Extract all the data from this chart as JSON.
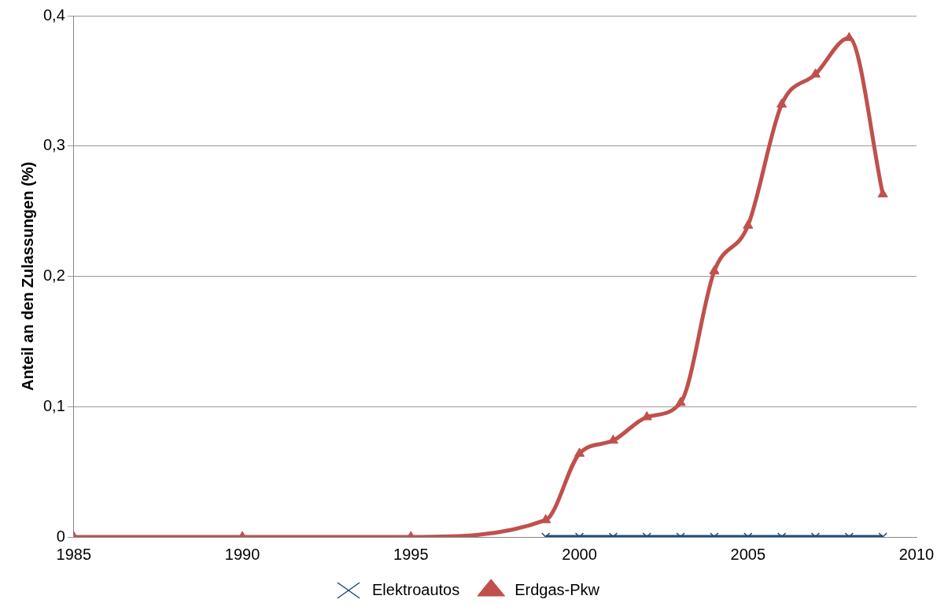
{
  "chart_data": {
    "type": "line",
    "ylabel": "Anteil an den Zulassungen (%)",
    "xlim": [
      1985,
      2010
    ],
    "xticks": [
      1985,
      1990,
      1995,
      2000,
      2005,
      2010
    ],
    "ylim": [
      0,
      0.4
    ],
    "yticks": [
      {
        "value": 0,
        "label": "0"
      },
      {
        "value": 0.1,
        "label": "0,1"
      },
      {
        "value": 0.2,
        "label": "0,2"
      },
      {
        "value": 0.3,
        "label": "0,3"
      },
      {
        "value": 0.4,
        "label": "0,4"
      }
    ],
    "grid": "y",
    "legend": "bottom",
    "series": [
      {
        "name": "Elektroautos",
        "color": "#1f497d",
        "marker": "cross",
        "x": [
          1999,
          2000,
          2001,
          2002,
          2003,
          2004,
          2005,
          2006,
          2007,
          2008,
          2009
        ],
        "values": [
          0,
          0,
          0,
          0,
          0,
          0,
          0,
          0,
          0,
          0,
          0
        ]
      },
      {
        "name": "Erdgas-Pkw",
        "color": "#c0504d",
        "marker": "triangle",
        "x": [
          1985,
          1990,
          1995,
          1999,
          2000,
          2001,
          2002,
          2003,
          2004,
          2005,
          2006,
          2007,
          2008,
          2009
        ],
        "values": [
          0,
          0,
          0,
          0.013,
          0.064,
          0.074,
          0.092,
          0.103,
          0.204,
          0.239,
          0.332,
          0.355,
          0.383,
          0.263
        ]
      }
    ]
  }
}
